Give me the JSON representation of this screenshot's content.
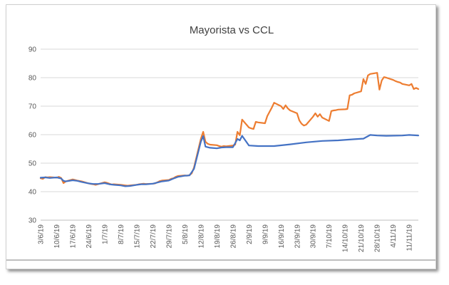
{
  "chart_data": {
    "type": "line",
    "title": "Mayorista vs CCL",
    "xlabel": "",
    "ylabel": "",
    "ylim": [
      30,
      90
    ],
    "yticks": [
      30,
      40,
      50,
      60,
      70,
      80,
      90
    ],
    "grid": true,
    "legend": "none",
    "x_tick_labels": [
      "3/6/19",
      "10/6/19",
      "17/6/19",
      "24/6/19",
      "1/7/19",
      "8/7/19",
      "15/7/19",
      "22/7/19",
      "29/7/19",
      "5/8/19",
      "12/8/19",
      "19/8/19",
      "26/8/19",
      "2/9/19",
      "9/9/19",
      "16/9/19",
      "23/9/19",
      "30/9/19",
      "7/10/19",
      "14/10/19",
      "21/10/19",
      "28/10/19",
      "4/11/19",
      "11/11/19"
    ],
    "x_start": "2019-06-03",
    "x_end": "2019-11-15",
    "series": [
      {
        "color": "#ED7D31",
        "points": [
          [
            "2019-06-03",
            44.7
          ],
          [
            "2019-06-04",
            44.5
          ],
          [
            "2019-06-05",
            45.1
          ],
          [
            "2019-06-06",
            45.0
          ],
          [
            "2019-06-07",
            45.1
          ],
          [
            "2019-06-10",
            44.9
          ],
          [
            "2019-06-11",
            45.2
          ],
          [
            "2019-06-12",
            44.8
          ],
          [
            "2019-06-13",
            43.0
          ],
          [
            "2019-06-14",
            43.6
          ],
          [
            "2019-06-17",
            44.3
          ],
          [
            "2019-06-18",
            44.1
          ],
          [
            "2019-06-19",
            43.9
          ],
          [
            "2019-06-21",
            43.6
          ],
          [
            "2019-06-24",
            42.9
          ],
          [
            "2019-06-25",
            42.7
          ],
          [
            "2019-06-26",
            42.6
          ],
          [
            "2019-06-27",
            42.4
          ],
          [
            "2019-06-28",
            42.6
          ],
          [
            "2019-07-01",
            43.3
          ],
          [
            "2019-07-02",
            43.1
          ],
          [
            "2019-07-03",
            42.8
          ],
          [
            "2019-07-04",
            42.5
          ],
          [
            "2019-07-05",
            42.6
          ],
          [
            "2019-07-08",
            42.4
          ],
          [
            "2019-07-10",
            42.2
          ],
          [
            "2019-07-11",
            42.1
          ],
          [
            "2019-07-12",
            42.2
          ],
          [
            "2019-07-15",
            42.4
          ],
          [
            "2019-07-16",
            42.6
          ],
          [
            "2019-07-17",
            42.7
          ],
          [
            "2019-07-18",
            42.8
          ],
          [
            "2019-07-19",
            42.7
          ],
          [
            "2019-07-22",
            42.8
          ],
          [
            "2019-07-23",
            42.9
          ],
          [
            "2019-07-24",
            43.3
          ],
          [
            "2019-07-25",
            43.7
          ],
          [
            "2019-07-26",
            43.9
          ],
          [
            "2019-07-29",
            44.1
          ],
          [
            "2019-07-30",
            44.5
          ],
          [
            "2019-07-31",
            44.7
          ],
          [
            "2019-08-01",
            45.2
          ],
          [
            "2019-08-02",
            45.5
          ],
          [
            "2019-08-05",
            45.7
          ],
          [
            "2019-08-06",
            45.6
          ],
          [
            "2019-08-07",
            45.8
          ],
          [
            "2019-08-08",
            46.4
          ],
          [
            "2019-08-09",
            48.5
          ],
          [
            "2019-08-12",
            58.5
          ],
          [
            "2019-08-13",
            61.0
          ],
          [
            "2019-08-14",
            57.5
          ],
          [
            "2019-08-15",
            56.8
          ],
          [
            "2019-08-16",
            56.5
          ],
          [
            "2019-08-19",
            56.3
          ],
          [
            "2019-08-20",
            56.0
          ],
          [
            "2019-08-21",
            55.8
          ],
          [
            "2019-08-22",
            56.0
          ],
          [
            "2019-08-23",
            55.9
          ],
          [
            "2019-08-26",
            56.2
          ],
          [
            "2019-08-27",
            56.5
          ],
          [
            "2019-08-28",
            61.0
          ],
          [
            "2019-08-29",
            59.8
          ],
          [
            "2019-08-30",
            65.3
          ],
          [
            "2019-09-02",
            62.5
          ],
          [
            "2019-09-03",
            62.2
          ],
          [
            "2019-09-04",
            62.0
          ],
          [
            "2019-09-05",
            64.5
          ],
          [
            "2019-09-06",
            64.3
          ],
          [
            "2019-09-09",
            64.0
          ],
          [
            "2019-09-10",
            66.5
          ],
          [
            "2019-09-11",
            68.0
          ],
          [
            "2019-09-12",
            69.5
          ],
          [
            "2019-09-13",
            71.2
          ],
          [
            "2019-09-16",
            70.0
          ],
          [
            "2019-09-17",
            69.0
          ],
          [
            "2019-09-18",
            70.3
          ],
          [
            "2019-09-19",
            69.2
          ],
          [
            "2019-09-20",
            68.5
          ],
          [
            "2019-09-23",
            67.5
          ],
          [
            "2019-09-24",
            65.0
          ],
          [
            "2019-09-25",
            63.8
          ],
          [
            "2019-09-26",
            63.2
          ],
          [
            "2019-09-27",
            63.5
          ],
          [
            "2019-09-30",
            66.3
          ],
          [
            "2019-10-01",
            67.5
          ],
          [
            "2019-10-02",
            66.3
          ],
          [
            "2019-10-03",
            67.2
          ],
          [
            "2019-10-04",
            66.0
          ],
          [
            "2019-10-07",
            64.8
          ],
          [
            "2019-10-08",
            68.3
          ],
          [
            "2019-10-09",
            68.5
          ],
          [
            "2019-10-10",
            68.6
          ],
          [
            "2019-10-11",
            68.8
          ],
          [
            "2019-10-14",
            68.9
          ],
          [
            "2019-10-15",
            69.0
          ],
          [
            "2019-10-16",
            73.8
          ],
          [
            "2019-10-17",
            74.0
          ],
          [
            "2019-10-18",
            74.5
          ],
          [
            "2019-10-21",
            75.2
          ],
          [
            "2019-10-22",
            79.5
          ],
          [
            "2019-10-23",
            77.8
          ],
          [
            "2019-10-24",
            80.8
          ],
          [
            "2019-10-25",
            81.3
          ],
          [
            "2019-10-28",
            81.7
          ],
          [
            "2019-10-29",
            75.8
          ],
          [
            "2019-10-30",
            79.0
          ],
          [
            "2019-10-31",
            80.2
          ],
          [
            "2019-11-01",
            80.0
          ],
          [
            "2019-11-04",
            79.2
          ],
          [
            "2019-11-05",
            78.8
          ],
          [
            "2019-11-06",
            78.5
          ],
          [
            "2019-11-07",
            78.3
          ],
          [
            "2019-11-08",
            77.8
          ],
          [
            "2019-11-11",
            77.3
          ],
          [
            "2019-11-12",
            77.8
          ],
          [
            "2019-11-13",
            76.0
          ],
          [
            "2019-11-14",
            76.4
          ],
          [
            "2019-11-15",
            76.0
          ]
        ]
      },
      {
        "color": "#4472C4",
        "points": [
          [
            "2019-06-03",
            44.9
          ],
          [
            "2019-06-05",
            45.0
          ],
          [
            "2019-06-07",
            44.8
          ],
          [
            "2019-06-10",
            45.0
          ],
          [
            "2019-06-12",
            44.6
          ],
          [
            "2019-06-13",
            43.8
          ],
          [
            "2019-06-14",
            43.6
          ],
          [
            "2019-06-17",
            44.0
          ],
          [
            "2019-06-19",
            43.8
          ],
          [
            "2019-06-21",
            43.4
          ],
          [
            "2019-06-24",
            42.9
          ],
          [
            "2019-06-26",
            42.7
          ],
          [
            "2019-06-28",
            42.7
          ],
          [
            "2019-07-01",
            43.0
          ],
          [
            "2019-07-03",
            42.6
          ],
          [
            "2019-07-05",
            42.4
          ],
          [
            "2019-07-08",
            42.2
          ],
          [
            "2019-07-10",
            41.9
          ],
          [
            "2019-07-12",
            42.0
          ],
          [
            "2019-07-15",
            42.4
          ],
          [
            "2019-07-17",
            42.6
          ],
          [
            "2019-07-19",
            42.6
          ],
          [
            "2019-07-22",
            42.8
          ],
          [
            "2019-07-24",
            43.2
          ],
          [
            "2019-07-26",
            43.6
          ],
          [
            "2019-07-29",
            43.9
          ],
          [
            "2019-07-31",
            44.6
          ],
          [
            "2019-08-02",
            45.2
          ],
          [
            "2019-08-05",
            45.6
          ],
          [
            "2019-08-07",
            45.7
          ],
          [
            "2019-08-09",
            48.0
          ],
          [
            "2019-08-12",
            57.5
          ],
          [
            "2019-08-13",
            59.5
          ],
          [
            "2019-08-14",
            55.8
          ],
          [
            "2019-08-16",
            55.4
          ],
          [
            "2019-08-19",
            55.2
          ],
          [
            "2019-08-21",
            55.5
          ],
          [
            "2019-08-23",
            55.6
          ],
          [
            "2019-08-26",
            55.6
          ],
          [
            "2019-08-28",
            58.5
          ],
          [
            "2019-08-29",
            58.0
          ],
          [
            "2019-08-30",
            59.6
          ],
          [
            "2019-09-02",
            56.2
          ],
          [
            "2019-09-06",
            56.0
          ],
          [
            "2019-09-13",
            56.0
          ],
          [
            "2019-09-20",
            56.6
          ],
          [
            "2019-09-27",
            57.3
          ],
          [
            "2019-10-04",
            57.8
          ],
          [
            "2019-10-11",
            58.0
          ],
          [
            "2019-10-18",
            58.4
          ],
          [
            "2019-10-22",
            58.6
          ],
          [
            "2019-10-25",
            59.9
          ],
          [
            "2019-10-28",
            59.7
          ],
          [
            "2019-11-01",
            59.6
          ],
          [
            "2019-11-08",
            59.7
          ],
          [
            "2019-11-11",
            59.9
          ],
          [
            "2019-11-15",
            59.7
          ]
        ]
      }
    ]
  }
}
